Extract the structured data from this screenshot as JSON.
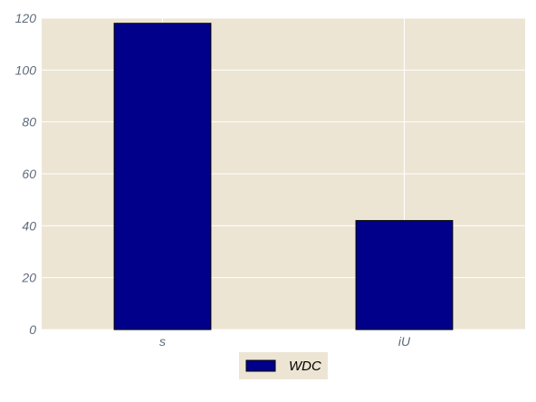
{
  "chart_data": {
    "type": "bar",
    "title": "",
    "xlabel": "",
    "ylabel": "",
    "categories": [
      "s",
      "iU"
    ],
    "series": [
      {
        "name": "WDC",
        "values": [
          118,
          42
        ],
        "color": "#00008b"
      }
    ],
    "ylim": [
      0,
      120
    ],
    "yticks": [
      "0",
      "20",
      "40",
      "60",
      "80",
      "100",
      "120"
    ],
    "grid": true,
    "legend_position": "bottom-center",
    "colors": {
      "plot_background": "#ede5d4",
      "grid": "#ffffff",
      "tick_label": "#5f6b7a",
      "bar": "#00008b",
      "bar_edge": "#000000"
    }
  }
}
